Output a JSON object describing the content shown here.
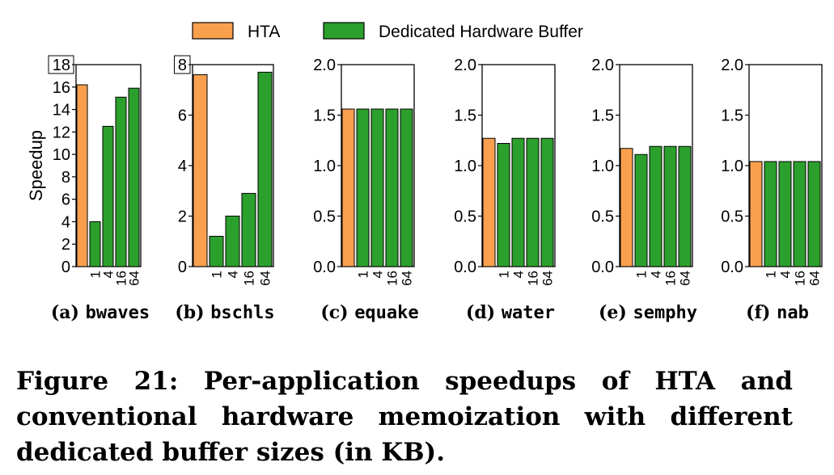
{
  "colors": {
    "hta": "#f9a04e",
    "buffer": "#2ca02c",
    "edge": "#000000"
  },
  "chart_data": {
    "type": "bar",
    "legend": {
      "placement": "top-center",
      "entries": [
        "HTA",
        "Dedicated Hardware Buffer"
      ]
    },
    "ylabel": "Speedup",
    "categories": [
      "HTA",
      "1",
      "4",
      "16",
      "64"
    ],
    "x_tick_labels": [
      "1",
      "4",
      "16",
      "64"
    ],
    "panels": [
      {
        "label_prefix": "(a)",
        "app": "bwaves",
        "ylim": [
          0,
          18
        ],
        "yticks": [
          "0",
          "2",
          "4",
          "6",
          "8",
          "10",
          "12",
          "14",
          "16",
          "18"
        ],
        "yticks_boxed": [
          "18"
        ],
        "hta": 16.2,
        "buffer": [
          4.0,
          12.5,
          15.1,
          15.9
        ]
      },
      {
        "label_prefix": "(b)",
        "app": "bschls",
        "ylim": [
          0,
          8
        ],
        "yticks": [
          "0",
          "2",
          "4",
          "6",
          "8"
        ],
        "yticks_boxed": [
          "8"
        ],
        "hta": 7.6,
        "buffer": [
          1.2,
          2.0,
          2.9,
          7.7
        ]
      },
      {
        "label_prefix": "(c)",
        "app": "equake",
        "ylim": [
          0,
          2.0
        ],
        "yticks": [
          "0.0",
          "0.5",
          "1.0",
          "1.5",
          "2.0"
        ],
        "yticks_boxed": [],
        "hta": 1.56,
        "buffer": [
          1.56,
          1.56,
          1.56,
          1.56
        ]
      },
      {
        "label_prefix": "(d)",
        "app": "water",
        "ylim": [
          0,
          2.0
        ],
        "yticks": [
          "0.0",
          "0.5",
          "1.0",
          "1.5",
          "2.0"
        ],
        "yticks_boxed": [],
        "hta": 1.27,
        "buffer": [
          1.22,
          1.27,
          1.27,
          1.27
        ]
      },
      {
        "label_prefix": "(e)",
        "app": "semphy",
        "ylim": [
          0,
          2.0
        ],
        "yticks": [
          "0.0",
          "0.5",
          "1.0",
          "1.5",
          "2.0"
        ],
        "yticks_boxed": [],
        "hta": 1.17,
        "buffer": [
          1.11,
          1.19,
          1.19,
          1.19
        ]
      },
      {
        "label_prefix": "(f)",
        "app": "nab",
        "ylim": [
          0,
          2.0
        ],
        "yticks": [
          "0.0",
          "0.5",
          "1.0",
          "1.5",
          "2.0"
        ],
        "yticks_boxed": [],
        "hta": 1.04,
        "buffer": [
          1.04,
          1.04,
          1.04,
          1.04
        ]
      }
    ]
  },
  "caption": "Figure 21: Per-application speedups of HTA and conventional hardware memoization with different dedicated buffer sizes (in KB)."
}
